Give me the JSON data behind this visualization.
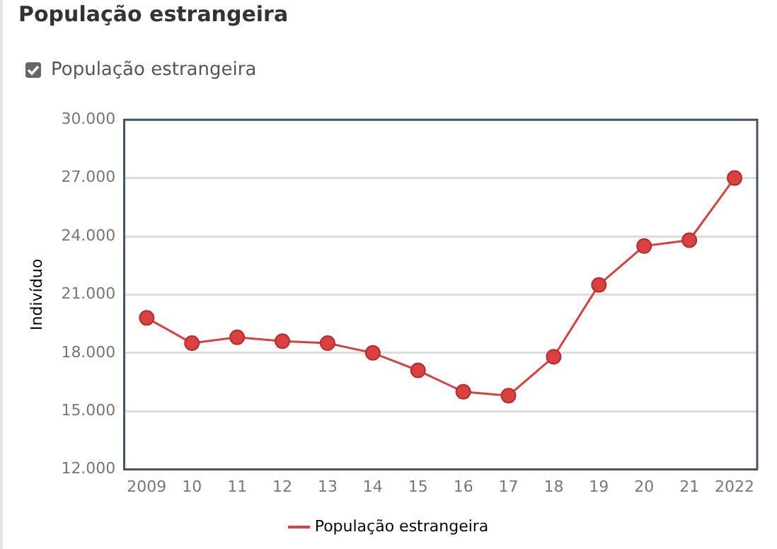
{
  "chart_data": {
    "type": "line",
    "title": "População estrangeira",
    "ylabel": "Indivíduo",
    "categories": [
      "2009",
      "10",
      "11",
      "12",
      "13",
      "14",
      "15",
      "16",
      "17",
      "18",
      "19",
      "20",
      "21",
      "2022"
    ],
    "series": [
      {
        "name": "População estrangeira",
        "color": "#d94040",
        "values": [
          19800,
          18500,
          18800,
          18600,
          18500,
          18000,
          17100,
          16000,
          15800,
          17800,
          21500,
          23500,
          23800,
          27000
        ]
      }
    ],
    "ylim": [
      12000,
      30000
    ],
    "yticks": [
      {
        "value": 12000,
        "label": "12.000"
      },
      {
        "value": 15000,
        "label": "15.000"
      },
      {
        "value": 18000,
        "label": "18.000"
      },
      {
        "value": 21000,
        "label": "21.000"
      },
      {
        "value": 24000,
        "label": "24.000"
      },
      {
        "value": 27000,
        "label": "27.000"
      },
      {
        "value": 30000,
        "label": "30.000"
      }
    ],
    "grid": "y",
    "legend": "bottom",
    "marker": "circle",
    "line_style": "solid"
  }
}
